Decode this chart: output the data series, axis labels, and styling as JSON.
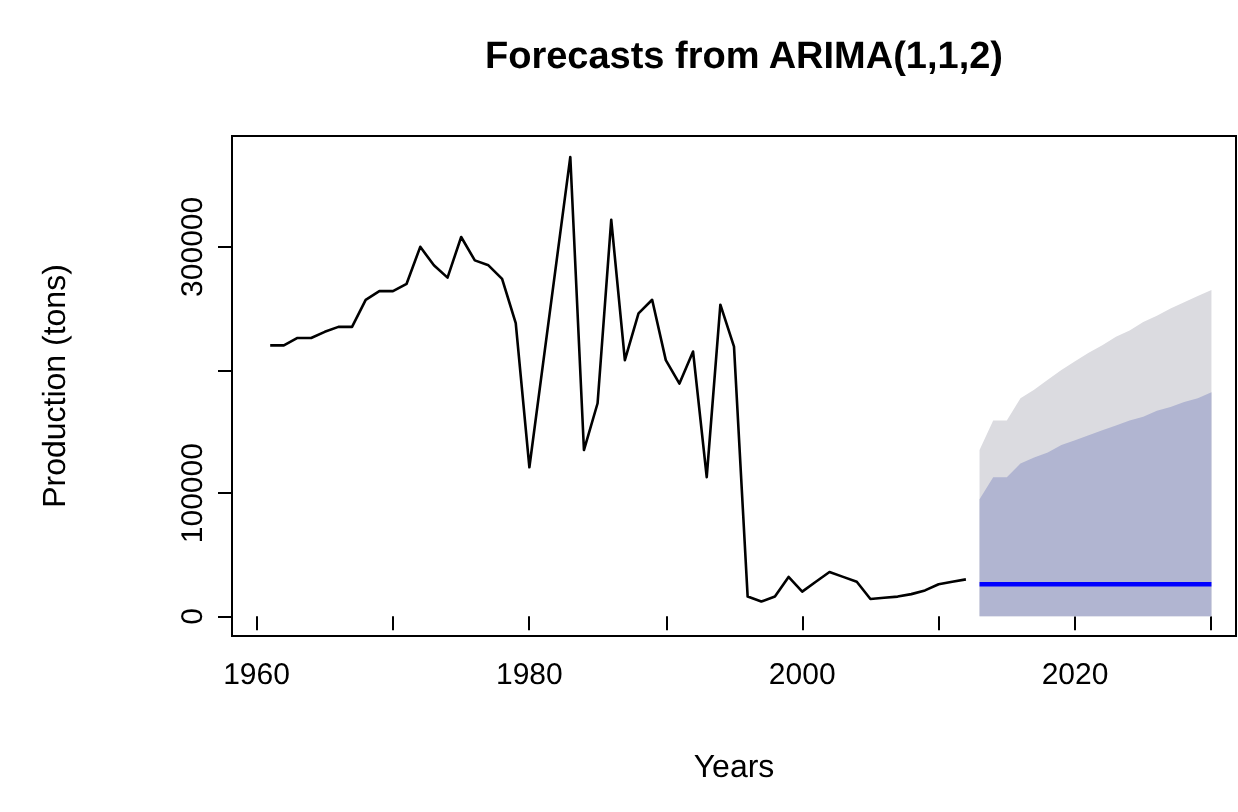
{
  "chart_data": {
    "type": "line",
    "title": "Forecasts from ARIMA(1,1,2)",
    "xlabel": "Years",
    "ylabel": "Production (tons)",
    "xlim": [
      1958.2,
      2031.8
    ],
    "ylim": [
      -16000,
      390000
    ],
    "xticks": [
      1960,
      {
        "value": 1970,
        "label": null
      },
      1980,
      {
        "value": 1990,
        "label": null
      },
      2000,
      {
        "value": 2010,
        "label": null
      },
      2020,
      {
        "value": 2030,
        "label": null
      }
    ],
    "yticks": [
      0,
      100000,
      {
        "value": 200000,
        "label": null
      },
      300000
    ],
    "grid": false,
    "marker": "none",
    "line_style": "solid",
    "series": [
      {
        "type": "area",
        "color": "#dbdbe0",
        "x": [
          2013,
          2014,
          2015,
          2016,
          2017,
          2018,
          2019,
          2020,
          2021,
          2022,
          2023,
          2024,
          2025,
          2026,
          2027,
          2028,
          2029,
          2030
        ],
        "values": [
          135000,
          159000,
          159000,
          177000,
          184000,
          192000,
          200000,
          207000,
          214000,
          220000,
          227000,
          232000,
          239000,
          244000,
          250000,
          255000,
          260000,
          265000
        ]
      },
      {
        "type": "area",
        "color": "#b1b5d1",
        "x": [
          2013,
          2014,
          2015,
          2016,
          2017,
          2018,
          2019,
          2020,
          2021,
          2022,
          2023,
          2024,
          2025,
          2026,
          2027,
          2028,
          2029,
          2030
        ],
        "values": [
          95000,
          113000,
          113000,
          124000,
          129000,
          133000,
          139000,
          143000,
          147000,
          151000,
          155000,
          159000,
          162000,
          167000,
          170000,
          174000,
          177000,
          182000
        ]
      },
      {
        "color": "#000000",
        "x": [
          1961,
          1962,
          1963,
          1964,
          1965,
          1966,
          1967,
          1968,
          1969,
          1970,
          1971,
          1972,
          1973,
          1974,
          1975,
          1976,
          1977,
          1978,
          1979,
          1980,
          1981,
          1982,
          1983,
          1984,
          1985,
          1986,
          1987,
          1988,
          1989,
          1990,
          1991,
          1992,
          1993,
          1994,
          1995,
          1996,
          1997,
          1998,
          1999,
          2000,
          2001,
          2002,
          2003,
          2004,
          2005,
          2006,
          2007,
          2008,
          2009,
          2010,
          2011,
          2012
        ],
        "values": [
          220000,
          220000,
          226000,
          226000,
          231000,
          235000,
          235000,
          257000,
          264000,
          264000,
          270000,
          300000,
          285000,
          275000,
          308000,
          289000,
          285000,
          274000,
          238000,
          121000,
          205000,
          289000,
          373000,
          135000,
          173000,
          322000,
          208000,
          246000,
          257000,
          208000,
          189000,
          215000,
          113000,
          253000,
          219000,
          16000,
          12000,
          16000,
          32000,
          20000,
          28000,
          36000,
          32000,
          28000,
          14000,
          15000,
          16000,
          18000,
          21000,
          26000,
          28000,
          30000
        ]
      },
      {
        "type": "line",
        "color": "#0000ff",
        "x": [
          2013,
          2014,
          2015,
          2016,
          2017,
          2018,
          2019,
          2020,
          2021,
          2022,
          2023,
          2024,
          2025,
          2026,
          2027,
          2028,
          2029,
          2030
        ],
        "values": [
          26000,
          26000,
          26000,
          26000,
          26000,
          26000,
          26000,
          26000,
          26000,
          26000,
          26000,
          26000,
          26000,
          26000,
          26000,
          26000,
          26000,
          26000
        ]
      }
    ]
  }
}
